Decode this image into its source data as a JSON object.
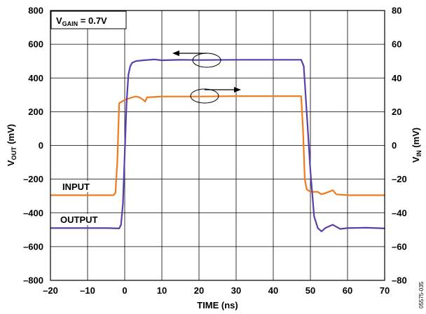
{
  "chart_data": {
    "type": "line",
    "xlabel": "TIME (ns)",
    "ylabel_left": {
      "main": "V",
      "sub": "OUT",
      "rest": " (mV)"
    },
    "ylabel_right": {
      "main": "V",
      "sub": "IN",
      "rest": " (mV)"
    },
    "xlim": [
      -20,
      70
    ],
    "ylim_left": [
      -800,
      800
    ],
    "ylim_right": [
      -80,
      80
    ],
    "x_ticks": [
      -20,
      -10,
      0,
      10,
      20,
      30,
      40,
      50,
      60,
      70
    ],
    "x_tick_labels": [
      "–20",
      "–10",
      "0",
      "10",
      "20",
      "30",
      "40",
      "50",
      "60",
      "70"
    ],
    "y_left_ticks": [
      -800,
      -600,
      -400,
      -200,
      0,
      200,
      400,
      600,
      800
    ],
    "y_left_tick_labels": [
      "–800",
      "–600",
      "–400",
      "–200",
      "0",
      "200",
      "400",
      "600",
      "800"
    ],
    "y_right_ticks": [
      -80,
      -60,
      -40,
      -20,
      0,
      20,
      40,
      60,
      80
    ],
    "y_right_tick_labels": [
      "–80",
      "–60",
      "–40",
      "–20",
      "0",
      "20",
      "40",
      "60",
      "80"
    ],
    "grid": true,
    "annotation": {
      "main": "V",
      "sub": "GAIN",
      "rest": " = 0.7V"
    },
    "figure_id": "05575-035",
    "series": [
      {
        "name": "OUTPUT",
        "axis": "left",
        "color": "#5b3fa8",
        "x": [
          -20,
          -5,
          -1.5,
          -1,
          -0.5,
          0,
          0.5,
          1,
          1.5,
          2,
          3,
          5,
          8,
          10,
          15,
          20,
          30,
          40,
          47.5,
          48.2,
          49,
          50,
          51,
          52,
          53,
          54,
          56,
          58,
          60,
          65,
          70
        ],
        "y": [
          -490,
          -490,
          -492,
          -470,
          -350,
          -50,
          250,
          420,
          470,
          490,
          500,
          505,
          510,
          505,
          508,
          506,
          508,
          508,
          508,
          470,
          200,
          -150,
          -420,
          -490,
          -510,
          -490,
          -470,
          -495,
          -490,
          -488,
          -492
        ]
      },
      {
        "name": "INPUT",
        "axis": "right",
        "color": "#f07a1c",
        "x": [
          -20,
          -3,
          -2.5,
          -2,
          -1.5,
          0,
          2,
          3,
          4,
          5,
          5.5,
          6,
          10,
          20,
          30,
          40,
          47.5,
          48,
          48.5,
          49,
          50,
          52,
          53,
          55,
          56,
          57,
          60,
          70
        ],
        "y": [
          -29.5,
          -29.5,
          -28,
          -10,
          25,
          27,
          28.5,
          29,
          28.5,
          27,
          26,
          28.5,
          29,
          29,
          29.2,
          29.2,
          29.2,
          10,
          -20,
          -26,
          -27.5,
          -27.5,
          -29,
          -27.5,
          -26.5,
          -29,
          -29.5,
          -29.5
        ]
      }
    ],
    "series_labels": {
      "input": "INPUT",
      "output": "OUTPUT"
    }
  }
}
